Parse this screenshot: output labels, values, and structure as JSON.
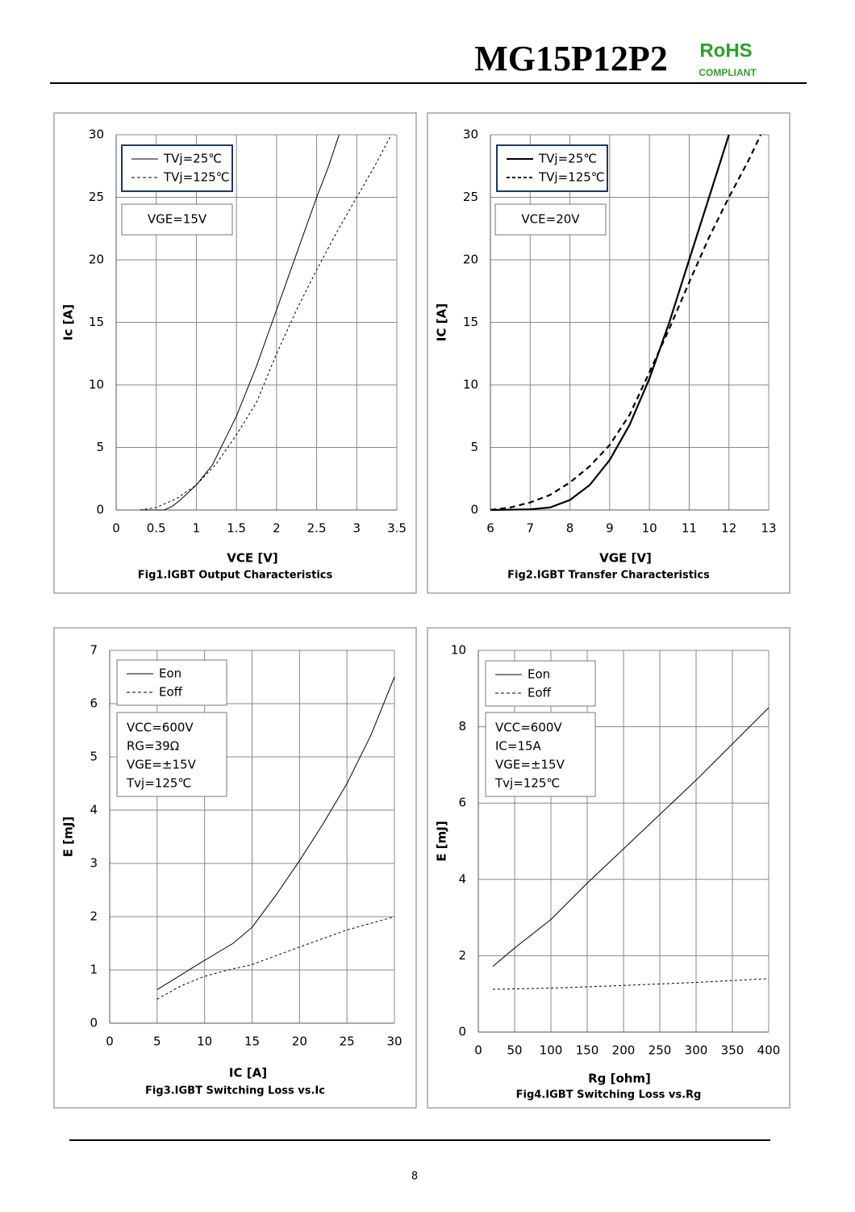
{
  "header": {
    "title": "MG15P12P2",
    "rohs": "RoHS",
    "compliant": "COMPLIANT"
  },
  "chart_data": [
    {
      "type": "line",
      "title": "Fig1.IGBT Output Characteristics",
      "xlabel": "VCE   [V]",
      "ylabel": "Ic   [A]",
      "xlim": [
        0,
        3.5
      ],
      "xticks": [
        0,
        0.5,
        1,
        1.5,
        2,
        2.5,
        3,
        3.5
      ],
      "ylim": [
        0,
        30
      ],
      "yticks": [
        0,
        5,
        10,
        15,
        20,
        25,
        30
      ],
      "grid": true,
      "annotations": [
        "VGE=15V"
      ],
      "series": [
        {
          "name": "TVj=25℃",
          "color": "#000000",
          "style": "solid",
          "x": [
            0.3,
            0.5,
            0.6,
            0.7,
            0.8,
            1.0,
            1.2,
            1.5,
            1.75,
            2.0,
            2.25,
            2.5,
            2.65,
            2.78
          ],
          "values": [
            0,
            0,
            0,
            0.3,
            0.8,
            2.0,
            3.6,
            7.5,
            11.5,
            16,
            20.5,
            25,
            27.5,
            30
          ]
        },
        {
          "name": "TVj=125℃",
          "color": "#000000",
          "style": "dashed",
          "x": [
            0.3,
            0.5,
            0.75,
            1.0,
            1.25,
            1.5,
            1.75,
            2.0,
            2.25,
            2.5,
            2.75,
            3.0,
            3.25,
            3.43
          ],
          "values": [
            0,
            0.2,
            0.9,
            2.0,
            3.7,
            6.0,
            8.6,
            12.5,
            16.0,
            19.2,
            22.2,
            25,
            27.8,
            30
          ]
        }
      ]
    },
    {
      "type": "line",
      "title": "Fig2.IGBT Transfer Characteristics",
      "xlabel": "VGE   [V]",
      "ylabel": "IC [A]",
      "xlim": [
        6,
        13
      ],
      "xticks": [
        6,
        7,
        8,
        9,
        10,
        11,
        12,
        13
      ],
      "ylim": [
        0,
        30
      ],
      "yticks": [
        0,
        5,
        10,
        15,
        20,
        25,
        30
      ],
      "grid": true,
      "annotations": [
        "VCE=20V"
      ],
      "series": [
        {
          "name": "TVj=25℃",
          "color": "#000000",
          "style": "solid",
          "x": [
            6,
            7,
            7.5,
            8,
            8.5,
            9,
            9.5,
            10,
            10.5,
            11,
            11.5,
            12
          ],
          "values": [
            0,
            0.05,
            0.2,
            0.8,
            2.0,
            4.0,
            6.8,
            10.5,
            15,
            20,
            25,
            30
          ]
        },
        {
          "name": "TVj=125℃",
          "color": "#000000",
          "style": "dashed",
          "x": [
            6,
            6.5,
            7,
            7.5,
            8,
            8.5,
            9,
            9.5,
            10,
            10.5,
            11,
            11.5,
            12,
            12.5,
            12.8
          ],
          "values": [
            0,
            0.2,
            0.6,
            1.2,
            2.2,
            3.5,
            5.2,
            7.6,
            11,
            14.5,
            18.2,
            21.8,
            25,
            28,
            30
          ]
        }
      ]
    },
    {
      "type": "line",
      "title": "Fig3.IGBT Switching Loss vs.Ic",
      "xlabel": "IC   [A]",
      "ylabel": "E  [mJ]",
      "xlim": [
        0,
        30
      ],
      "xticks": [
        0,
        5,
        10,
        15,
        20,
        25,
        30
      ],
      "ylim": [
        0,
        7
      ],
      "yticks": [
        0,
        1,
        2,
        3,
        4,
        5,
        6,
        7
      ],
      "grid": true,
      "annotations": [
        "VCC=600V",
        "RG=39Ω",
        "VGE=±15V",
        "Tvj=125℃"
      ],
      "series": [
        {
          "name": "Eon",
          "color": "#000000",
          "style": "solid",
          "x": [
            5,
            10,
            13,
            15,
            17.5,
            20,
            22.5,
            25,
            27.5,
            30
          ],
          "values": [
            0.63,
            1.18,
            1.5,
            1.8,
            2.4,
            3.05,
            3.75,
            4.5,
            5.4,
            6.5
          ]
        },
        {
          "name": "Eoff",
          "color": "#000000",
          "style": "dashed",
          "x": [
            5,
            7.5,
            10,
            12.5,
            15,
            20,
            25,
            30
          ],
          "values": [
            0.45,
            0.7,
            0.88,
            1.0,
            1.1,
            1.43,
            1.75,
            2.0
          ]
        }
      ]
    },
    {
      "type": "line",
      "title": "Fig4.IGBT Switching Loss vs.Rg",
      "xlabel": "Rg  [ohm]",
      "ylabel": "E  [mJ]",
      "xlim": [
        0,
        400
      ],
      "xticks": [
        0,
        50,
        100,
        150,
        200,
        250,
        300,
        350,
        400
      ],
      "ylim": [
        0,
        10
      ],
      "yticks": [
        0,
        2,
        4,
        6,
        8,
        10
      ],
      "grid": true,
      "annotations": [
        "VCC=600V",
        "IC=15A",
        "VGE=±15V",
        "Tvj=125℃"
      ],
      "series": [
        {
          "name": "Eon",
          "color": "#000000",
          "style": "solid",
          "x": [
            20,
            50,
            100,
            150,
            200,
            250,
            300,
            350,
            400
          ],
          "values": [
            1.72,
            2.2,
            2.95,
            3.9,
            4.8,
            5.7,
            6.6,
            7.55,
            8.5
          ]
        },
        {
          "name": "Eoff",
          "color": "#000000",
          "style": "dashed",
          "x": [
            20,
            100,
            200,
            300,
            400
          ],
          "values": [
            1.12,
            1.15,
            1.22,
            1.3,
            1.4
          ]
        }
      ]
    }
  ],
  "footer": {
    "page": "8"
  }
}
